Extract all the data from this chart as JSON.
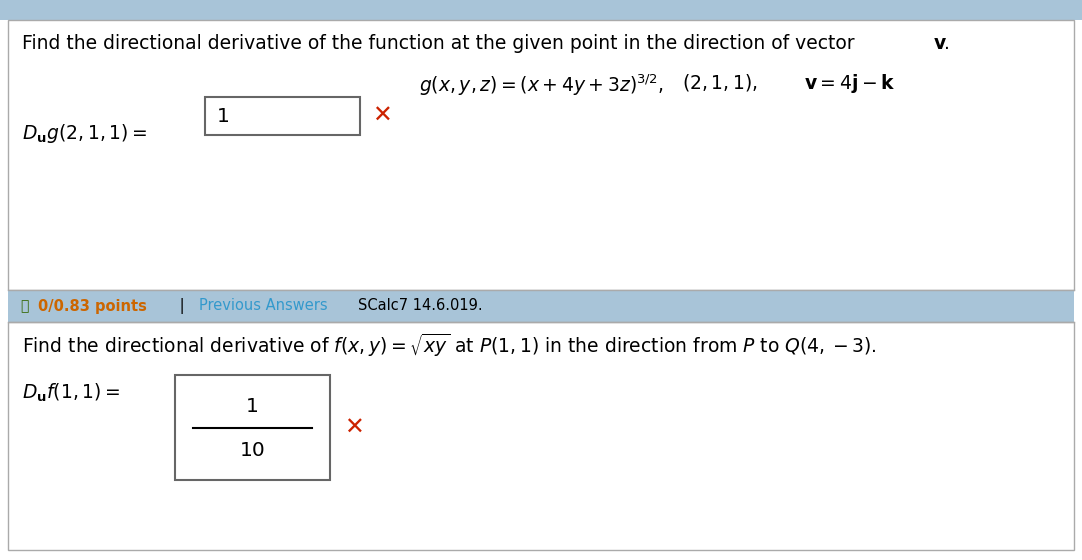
{
  "bg_color": "#ffffff",
  "top_bar_color": "#a8c4d8",
  "header_bar_color": "#a8c4d8",
  "border_color": "#aaaaaa",
  "text_color": "#000000",
  "bold_orange": "#cc6600",
  "link_blue": "#3399cc",
  "red_x_color": "#cc2200",
  "green_circle_color": "#336600",
  "line1_top": "Find the directional derivative of the function at the given point in the direction of vector ",
  "line1_top_v": "v",
  "header_bar_bold": "0/0.83 points",
  "header_bar_sep": " | ",
  "header_bar_prev": "Previous Answers",
  "header_bar_code": " SCalc7 14.6.019.",
  "line1_bot_plain": "Find the directional derivative of ",
  "line1_bot_math": "f(x, y) = \\sqrt{xy}",
  "line1_bot_mid": " at ",
  "line1_bot_P": "P(1, 1)",
  "line1_bot_end": " in the direction from ",
  "line1_bot_PQ": "P",
  "line1_bot_to": " to ",
  "line1_bot_Q": "Q(4, \\u22123).",
  "ans1_value": "1",
  "ans2_num": "1",
  "ans2_den": "10"
}
